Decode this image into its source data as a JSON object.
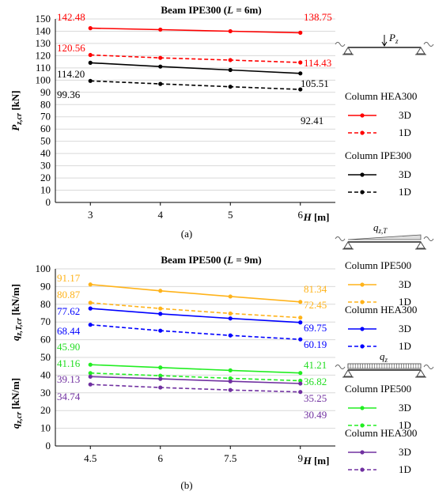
{
  "chart_data": [
    {
      "type": "line",
      "panel": "(a)",
      "title": "Beam IPE300 (L = 6m)",
      "title_parts": [
        "Beam IPE300 (",
        "L",
        " = 6m)"
      ],
      "xlabel": "H [m]",
      "xlabel_parts": [
        "H",
        " [m]"
      ],
      "ylabel": "Pz,cr [kN]",
      "ylabel_parts": {
        "main": "P",
        "sub": "z,cr",
        "unit": " [kN]"
      },
      "x": [
        3,
        4,
        5,
        6
      ],
      "xlim": [
        2.5,
        6.5
      ],
      "ylim": [
        0,
        150
      ],
      "yticks": [
        0,
        10,
        20,
        30,
        40,
        50,
        60,
        70,
        80,
        90,
        100,
        110,
        120,
        130,
        140,
        150
      ],
      "grid": "horizontal",
      "load_label": {
        "main": "P",
        "sub": "z"
      },
      "legend_groups": [
        {
          "title": "Column HEA300",
          "color": "#ff0000",
          "items": [
            "3D",
            "1D"
          ]
        },
        {
          "title": "Column IPE300",
          "color": "#000000",
          "items": [
            "3D",
            "1D"
          ]
        }
      ],
      "series": [
        {
          "values": [
            142.48,
            141.3,
            140.0,
            138.75
          ],
          "color": "#ff0000",
          "dash": false,
          "first_label": "142.48",
          "last_label": "138.75"
        },
        {
          "values": [
            120.56,
            118.2,
            116.4,
            114.43
          ],
          "color": "#ff0000",
          "dash": true,
          "first_label": "120.56",
          "last_label": "114.43"
        },
        {
          "values": [
            114.2,
            111.1,
            108.3,
            105.51
          ],
          "color": "#000000",
          "dash": false,
          "first_label": "114.20",
          "last_label": "105.51"
        },
        {
          "values": [
            99.36,
            96.9,
            94.6,
            92.41
          ],
          "color": "#000000",
          "dash": true,
          "first_label": "99.36",
          "last_label": "92.41"
        }
      ]
    },
    {
      "type": "line",
      "panel": "(b)",
      "title": "Beam IPE500 (L = 9m)",
      "title_parts": [
        "Beam IPE500 (",
        "L",
        " = 9m)"
      ],
      "xlabel": "H [m]",
      "xlabel_parts": [
        "H",
        " [m]"
      ],
      "ylabel_upper": "qz,T,cr [kN/m]",
      "ylabel_upper_parts": {
        "main": "q",
        "sub": "z,T,cr",
        "unit": " [kN/m]"
      },
      "ylabel_lower": "qz,cr [kN/m]",
      "ylabel_lower_parts": {
        "main": "q",
        "sub": "z,cr",
        "unit": " [kN/m]"
      },
      "x": [
        4.5,
        6,
        7.5,
        9
      ],
      "xlim": [
        3.75,
        9.75
      ],
      "ylim": [
        0,
        100
      ],
      "yticks": [
        0,
        10,
        20,
        30,
        40,
        50,
        60,
        70,
        80,
        90,
        100
      ],
      "grid": "horizontal",
      "load_label_upper": {
        "main": "q",
        "sub": "z,T"
      },
      "load_label_lower": {
        "main": "q",
        "sub": "z"
      },
      "legend_groups": [
        {
          "title": "Column IPE500",
          "color": "#ffb31a",
          "items": [
            "3D",
            "1D"
          ]
        },
        {
          "title": "Column HEA300",
          "color": "#0000ff",
          "items": [
            "3D",
            "1D"
          ]
        },
        {
          "title": "Column IPE500",
          "color": "#22ee22",
          "items": [
            "3D",
            "1D"
          ]
        },
        {
          "title": "Column HEA300",
          "color": "#7030a0",
          "items": [
            "3D",
            "1D"
          ]
        }
      ],
      "series": [
        {
          "values": [
            91.17,
            87.6,
            84.4,
            81.34
          ],
          "color": "#ffb31a",
          "dash": false,
          "first_label": "91.17",
          "last_label": "81.34"
        },
        {
          "values": [
            80.87,
            77.6,
            74.8,
            72.45
          ],
          "color": "#ffb31a",
          "dash": true,
          "first_label": "80.87",
          "last_label": "72.45"
        },
        {
          "values": [
            77.62,
            74.6,
            72.0,
            69.75
          ],
          "color": "#0000ff",
          "dash": false,
          "first_label": "77.62",
          "last_label": "69.75"
        },
        {
          "values": [
            68.44,
            65.1,
            62.4,
            60.19
          ],
          "color": "#0000ff",
          "dash": true,
          "first_label": "68.44",
          "last_label": "60.19"
        },
        {
          "values": [
            45.9,
            44.3,
            42.7,
            41.21
          ],
          "color": "#22ee22",
          "dash": false,
          "first_label": "45.90",
          "last_label": "41.21"
        },
        {
          "values": [
            41.16,
            39.7,
            38.2,
            36.82
          ],
          "color": "#22ee22",
          "dash": true,
          "first_label": "41.16",
          "last_label": "36.82"
        },
        {
          "values": [
            39.13,
            37.9,
            36.5,
            35.25
          ],
          "color": "#7030a0",
          "dash": false,
          "first_label": "39.13",
          "last_label": "35.25"
        },
        {
          "values": [
            34.74,
            33.0,
            31.6,
            30.49
          ],
          "color": "#7030a0",
          "dash": true,
          "first_label": "34.74",
          "last_label": "30.49"
        }
      ]
    }
  ]
}
